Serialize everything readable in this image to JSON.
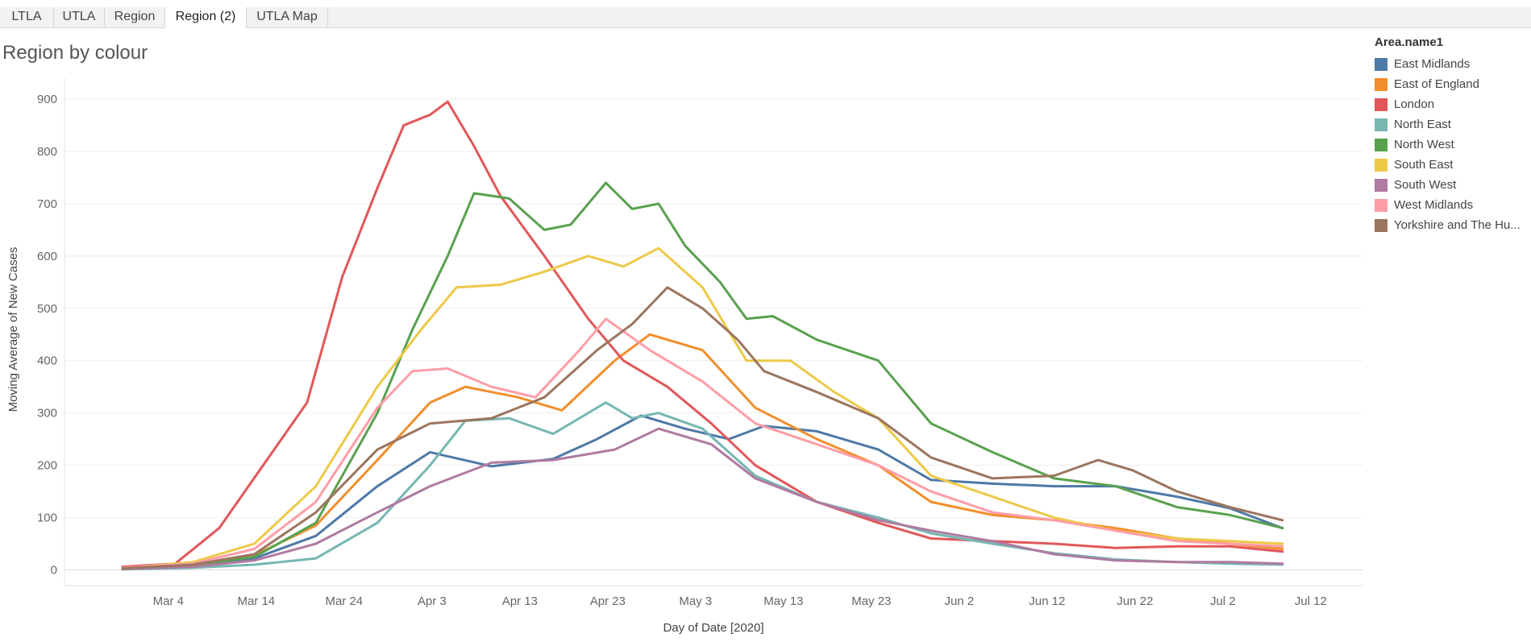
{
  "tabs": [
    {
      "label": "LTLA",
      "active": false
    },
    {
      "label": "UTLA",
      "active": false
    },
    {
      "label": "Region",
      "active": false
    },
    {
      "label": "Region (2)",
      "active": true
    },
    {
      "label": "UTLA Map",
      "active": false
    }
  ],
  "view_title": "Region by colour",
  "legend": {
    "title": "Area.name1",
    "items": [
      {
        "label": "East Midlands",
        "color": "#4e79a7"
      },
      {
        "label": "East of England",
        "color": "#f28e2b"
      },
      {
        "label": "London",
        "color": "#e15759"
      },
      {
        "label": "North East",
        "color": "#76b7b2"
      },
      {
        "label": "North West",
        "color": "#59a14f"
      },
      {
        "label": "South East",
        "color": "#edc948"
      },
      {
        "label": "South West",
        "color": "#b07aa1"
      },
      {
        "label": "West Midlands",
        "color": "#ff9da7"
      },
      {
        "label": "Yorkshire and The Hu...",
        "color": "#9c755f"
      }
    ]
  },
  "chart_data": {
    "type": "line",
    "title": "Region by colour",
    "xlabel": "Day of Date [2020]",
    "ylabel": "Moving Average of New Cases",
    "x_ticks": [
      "Mar 4",
      "Mar 14",
      "Mar 24",
      "Apr 3",
      "Apr 13",
      "Apr 23",
      "May 3",
      "May 13",
      "May 23",
      "Jun 2",
      "Jun 12",
      "Jun 22",
      "Jul 2",
      "Jul 12"
    ],
    "y_ticks": [
      0,
      100,
      200,
      300,
      400,
      500,
      600,
      700,
      800,
      900
    ],
    "ylim": [
      -30,
      940
    ],
    "x_start": "2020-03-02",
    "x_end": "2020-07-12",
    "grid": "horizontal",
    "legend_position": "right",
    "series": [
      {
        "name": "East Midlands",
        "color": "#4e79a7",
        "points": [
          [
            "2020-03-02",
            3
          ],
          [
            "2020-03-10",
            8
          ],
          [
            "2020-03-17",
            22
          ],
          [
            "2020-03-24",
            65
          ],
          [
            "2020-03-31",
            160
          ],
          [
            "2020-04-06",
            225
          ],
          [
            "2020-04-13",
            198
          ],
          [
            "2020-04-20",
            212
          ],
          [
            "2020-04-25",
            250
          ],
          [
            "2020-04-30",
            295
          ],
          [
            "2020-05-05",
            270
          ],
          [
            "2020-05-10",
            250
          ],
          [
            "2020-05-14",
            275
          ],
          [
            "2020-05-20",
            265
          ],
          [
            "2020-05-27",
            230
          ],
          [
            "2020-06-02",
            172
          ],
          [
            "2020-06-09",
            165
          ],
          [
            "2020-06-16",
            160
          ],
          [
            "2020-06-23",
            160
          ],
          [
            "2020-06-30",
            140
          ],
          [
            "2020-07-06",
            118
          ],
          [
            "2020-07-12",
            80
          ]
        ]
      },
      {
        "name": "East of England",
        "color": "#f28e2b",
        "points": [
          [
            "2020-03-02",
            5
          ],
          [
            "2020-03-10",
            10
          ],
          [
            "2020-03-17",
            28
          ],
          [
            "2020-03-24",
            85
          ],
          [
            "2020-03-31",
            210
          ],
          [
            "2020-04-06",
            320
          ],
          [
            "2020-04-10",
            350
          ],
          [
            "2020-04-16",
            330
          ],
          [
            "2020-04-21",
            305
          ],
          [
            "2020-04-27",
            400
          ],
          [
            "2020-05-01",
            450
          ],
          [
            "2020-05-07",
            420
          ],
          [
            "2020-05-13",
            310
          ],
          [
            "2020-05-20",
            250
          ],
          [
            "2020-05-27",
            200
          ],
          [
            "2020-06-02",
            130
          ],
          [
            "2020-06-09",
            105
          ],
          [
            "2020-06-16",
            95
          ],
          [
            "2020-06-23",
            80
          ],
          [
            "2020-06-30",
            60
          ],
          [
            "2020-07-06",
            50
          ],
          [
            "2020-07-12",
            40
          ]
        ]
      },
      {
        "name": "London",
        "color": "#e15759",
        "points": [
          [
            "2020-03-02",
            6
          ],
          [
            "2020-03-08",
            12
          ],
          [
            "2020-03-13",
            80
          ],
          [
            "2020-03-18",
            200
          ],
          [
            "2020-03-23",
            320
          ],
          [
            "2020-03-27",
            560
          ],
          [
            "2020-03-31",
            730
          ],
          [
            "2020-04-03",
            850
          ],
          [
            "2020-04-06",
            870
          ],
          [
            "2020-04-08",
            895
          ],
          [
            "2020-04-11",
            810
          ],
          [
            "2020-04-14",
            715
          ],
          [
            "2020-04-19",
            600
          ],
          [
            "2020-04-24",
            480
          ],
          [
            "2020-04-28",
            400
          ],
          [
            "2020-05-03",
            350
          ],
          [
            "2020-05-08",
            280
          ],
          [
            "2020-05-13",
            200
          ],
          [
            "2020-05-20",
            130
          ],
          [
            "2020-05-27",
            90
          ],
          [
            "2020-06-02",
            60
          ],
          [
            "2020-06-09",
            55
          ],
          [
            "2020-06-16",
            50
          ],
          [
            "2020-06-23",
            42
          ],
          [
            "2020-06-30",
            45
          ],
          [
            "2020-07-06",
            45
          ],
          [
            "2020-07-12",
            35
          ]
        ]
      },
      {
        "name": "North East",
        "color": "#76b7b2",
        "points": [
          [
            "2020-03-02",
            1
          ],
          [
            "2020-03-10",
            4
          ],
          [
            "2020-03-17",
            10
          ],
          [
            "2020-03-24",
            22
          ],
          [
            "2020-03-31",
            90
          ],
          [
            "2020-04-06",
            200
          ],
          [
            "2020-04-10",
            285
          ],
          [
            "2020-04-15",
            290
          ],
          [
            "2020-04-20",
            260
          ],
          [
            "2020-04-26",
            320
          ],
          [
            "2020-04-29",
            290
          ],
          [
            "2020-05-02",
            300
          ],
          [
            "2020-05-07",
            270
          ],
          [
            "2020-05-13",
            180
          ],
          [
            "2020-05-20",
            130
          ],
          [
            "2020-05-27",
            100
          ],
          [
            "2020-06-02",
            70
          ],
          [
            "2020-06-09",
            50
          ],
          [
            "2020-06-16",
            32
          ],
          [
            "2020-06-23",
            20
          ],
          [
            "2020-06-30",
            15
          ],
          [
            "2020-07-06",
            12
          ],
          [
            "2020-07-12",
            10
          ]
        ]
      },
      {
        "name": "North West",
        "color": "#59a14f",
        "points": [
          [
            "2020-03-02",
            2
          ],
          [
            "2020-03-10",
            8
          ],
          [
            "2020-03-17",
            25
          ],
          [
            "2020-03-24",
            90
          ],
          [
            "2020-03-31",
            300
          ],
          [
            "2020-04-04",
            460
          ],
          [
            "2020-04-08",
            600
          ],
          [
            "2020-04-11",
            720
          ],
          [
            "2020-04-15",
            710
          ],
          [
            "2020-04-19",
            650
          ],
          [
            "2020-04-22",
            660
          ],
          [
            "2020-04-26",
            740
          ],
          [
            "2020-04-29",
            690
          ],
          [
            "2020-05-02",
            700
          ],
          [
            "2020-05-05",
            620
          ],
          [
            "2020-05-09",
            550
          ],
          [
            "2020-05-12",
            480
          ],
          [
            "2020-05-15",
            485
          ],
          [
            "2020-05-20",
            440
          ],
          [
            "2020-05-27",
            400
          ],
          [
            "2020-06-02",
            280
          ],
          [
            "2020-06-09",
            225
          ],
          [
            "2020-06-16",
            175
          ],
          [
            "2020-06-23",
            160
          ],
          [
            "2020-06-30",
            120
          ],
          [
            "2020-07-06",
            105
          ],
          [
            "2020-07-12",
            80
          ]
        ]
      },
      {
        "name": "South East",
        "color": "#edc948",
        "points": [
          [
            "2020-03-02",
            3
          ],
          [
            "2020-03-10",
            15
          ],
          [
            "2020-03-17",
            50
          ],
          [
            "2020-03-24",
            160
          ],
          [
            "2020-03-31",
            350
          ],
          [
            "2020-04-05",
            460
          ],
          [
            "2020-04-09",
            540
          ],
          [
            "2020-04-14",
            545
          ],
          [
            "2020-04-19",
            570
          ],
          [
            "2020-04-24",
            600
          ],
          [
            "2020-04-28",
            580
          ],
          [
            "2020-05-02",
            615
          ],
          [
            "2020-05-07",
            540
          ],
          [
            "2020-05-12",
            400
          ],
          [
            "2020-05-17",
            400
          ],
          [
            "2020-05-22",
            340
          ],
          [
            "2020-05-27",
            290
          ],
          [
            "2020-06-02",
            180
          ],
          [
            "2020-06-09",
            140
          ],
          [
            "2020-06-16",
            100
          ],
          [
            "2020-06-23",
            75
          ],
          [
            "2020-06-30",
            60
          ],
          [
            "2020-07-06",
            55
          ],
          [
            "2020-07-12",
            50
          ]
        ]
      },
      {
        "name": "South West",
        "color": "#b07aa1",
        "points": [
          [
            "2020-03-02",
            2
          ],
          [
            "2020-03-10",
            6
          ],
          [
            "2020-03-17",
            18
          ],
          [
            "2020-03-24",
            50
          ],
          [
            "2020-03-31",
            110
          ],
          [
            "2020-04-06",
            160
          ],
          [
            "2020-04-13",
            205
          ],
          [
            "2020-04-20",
            210
          ],
          [
            "2020-04-27",
            230
          ],
          [
            "2020-05-02",
            270
          ],
          [
            "2020-05-08",
            240
          ],
          [
            "2020-05-13",
            175
          ],
          [
            "2020-05-20",
            130
          ],
          [
            "2020-05-27",
            95
          ],
          [
            "2020-06-02",
            75
          ],
          [
            "2020-06-09",
            55
          ],
          [
            "2020-06-16",
            30
          ],
          [
            "2020-06-23",
            18
          ],
          [
            "2020-06-30",
            15
          ],
          [
            "2020-07-06",
            15
          ],
          [
            "2020-07-12",
            12
          ]
        ]
      },
      {
        "name": "West Midlands",
        "color": "#ff9da7",
        "points": [
          [
            "2020-03-02",
            4
          ],
          [
            "2020-03-10",
            12
          ],
          [
            "2020-03-17",
            40
          ],
          [
            "2020-03-24",
            130
          ],
          [
            "2020-03-31",
            310
          ],
          [
            "2020-04-04",
            380
          ],
          [
            "2020-04-08",
            385
          ],
          [
            "2020-04-13",
            350
          ],
          [
            "2020-04-18",
            330
          ],
          [
            "2020-04-23",
            420
          ],
          [
            "2020-04-26",
            480
          ],
          [
            "2020-05-01",
            420
          ],
          [
            "2020-05-07",
            360
          ],
          [
            "2020-05-13",
            280
          ],
          [
            "2020-05-20",
            240
          ],
          [
            "2020-05-27",
            200
          ],
          [
            "2020-06-02",
            150
          ],
          [
            "2020-06-09",
            110
          ],
          [
            "2020-06-16",
            95
          ],
          [
            "2020-06-23",
            75
          ],
          [
            "2020-06-30",
            55
          ],
          [
            "2020-07-06",
            50
          ],
          [
            "2020-07-12",
            45
          ]
        ]
      },
      {
        "name": "Yorkshire and The Hu...",
        "color": "#9c755f",
        "points": [
          [
            "2020-03-02",
            3
          ],
          [
            "2020-03-10",
            10
          ],
          [
            "2020-03-17",
            30
          ],
          [
            "2020-03-24",
            110
          ],
          [
            "2020-03-31",
            230
          ],
          [
            "2020-04-06",
            280
          ],
          [
            "2020-04-13",
            290
          ],
          [
            "2020-04-19",
            330
          ],
          [
            "2020-04-25",
            420
          ],
          [
            "2020-04-29",
            470
          ],
          [
            "2020-05-03",
            540
          ],
          [
            "2020-05-07",
            500
          ],
          [
            "2020-05-11",
            440
          ],
          [
            "2020-05-14",
            380
          ],
          [
            "2020-05-20",
            340
          ],
          [
            "2020-05-27",
            290
          ],
          [
            "2020-06-02",
            215
          ],
          [
            "2020-06-09",
            175
          ],
          [
            "2020-06-16",
            180
          ],
          [
            "2020-06-21",
            210
          ],
          [
            "2020-06-25",
            190
          ],
          [
            "2020-06-30",
            150
          ],
          [
            "2020-07-06",
            120
          ],
          [
            "2020-07-12",
            95
          ]
        ]
      }
    ]
  }
}
